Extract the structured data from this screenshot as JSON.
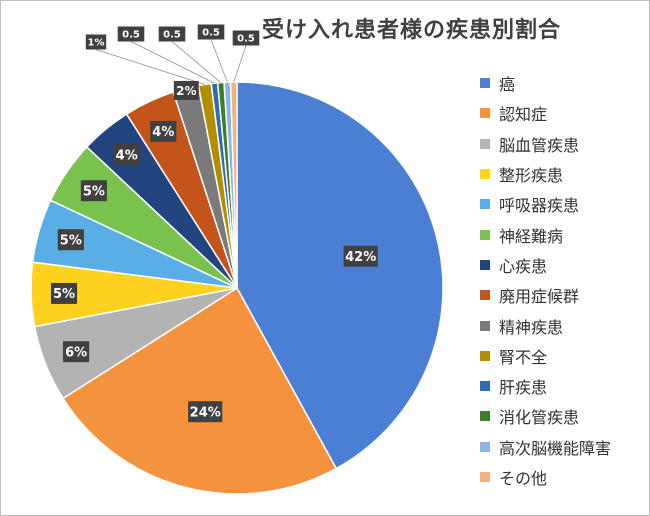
{
  "chart_data": {
    "type": "pie",
    "title": "受け入れ患者様の疾患別割合",
    "categories": [
      "癌",
      "認知症",
      "脳血管疾患",
      "整形疾患",
      "呼吸器疾患",
      "神経難病",
      "心疾患",
      "廃用症候群",
      "精神疾患",
      "腎不全",
      "肝疾患",
      "消化管疾患",
      "高次脳機能障害",
      "その他"
    ],
    "values": [
      42,
      24,
      6,
      5,
      5,
      5,
      4,
      4,
      2,
      1,
      0.5,
      0.5,
      0.5,
      0.5
    ],
    "labels": [
      "42%",
      "24%",
      "6%",
      "5%",
      "5%",
      "5%",
      "4%",
      "4%",
      "2%",
      "1%",
      "0.5",
      "0.5",
      "0.5",
      "0.5"
    ],
    "colors": [
      "#4a7fd4",
      "#f5923e",
      "#b3b3b3",
      "#ffd21f",
      "#5aaee6",
      "#79c24e",
      "#22447f",
      "#c4541a",
      "#7a7a7a",
      "#b38f00",
      "#2d6cb0",
      "#3f7f2c",
      "#8db4e6",
      "#f5b183"
    ],
    "legend_position": "right",
    "start_angle_deg": 0,
    "direction": "clockwise"
  }
}
